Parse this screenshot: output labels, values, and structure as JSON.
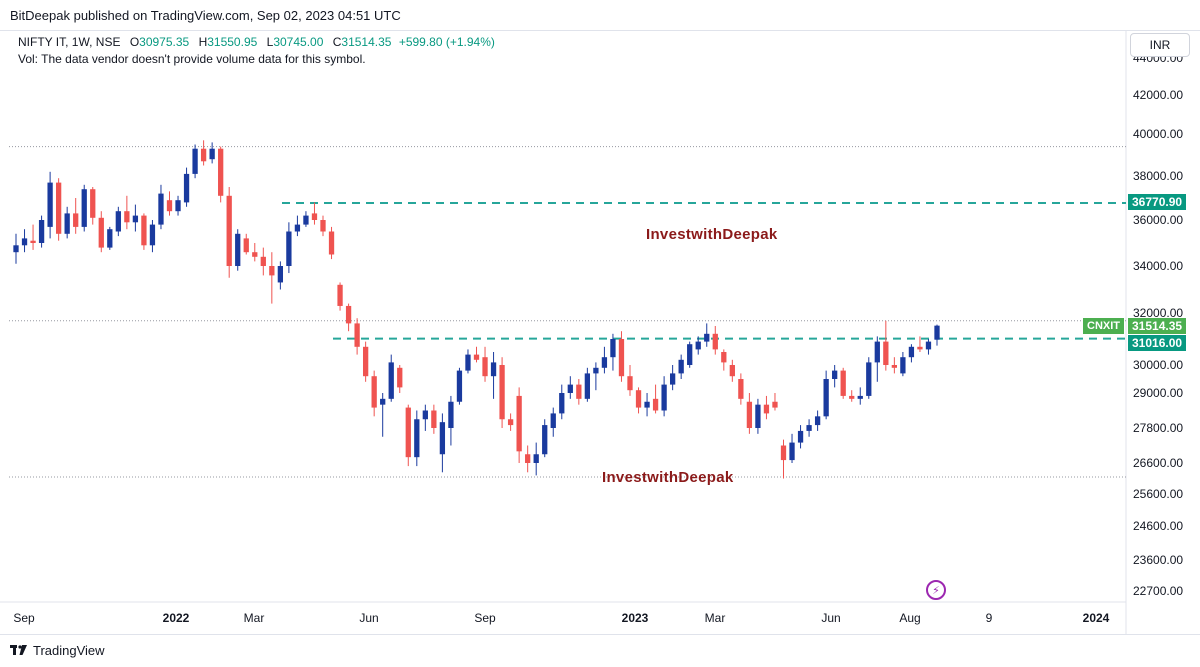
{
  "header": {
    "published": "BitDeepak published on TradingView.com, Sep 02, 2023 04:51 UTC"
  },
  "legend": {
    "symbol": "NIFTY IT, 1W, NSE",
    "open_label": "O",
    "open": "30975.35",
    "high_label": "H",
    "high": "31550.95",
    "low_label": "L",
    "low": "30745.00",
    "close_label": "C",
    "close": "31514.35",
    "change": "+599.80 (+1.94%)",
    "volume_note": "Vol: The data vendor doesn't provide volume data for this symbol."
  },
  "currency": "INR",
  "colors": {
    "up": "#1a3a9e",
    "down": "#ef5350",
    "level": "#26a69a",
    "tag_green": "#4caf50",
    "tag_teal": "#089981",
    "watermark": "#8b1a1a",
    "dotted": "#9598a1"
  },
  "price_tags": {
    "resistance": "36770.90",
    "last_symbol": "CNXIT",
    "last_price": "31514.35",
    "neckline": "31016.00"
  },
  "watermarks": [
    "InvestwithDeepak",
    "InvestwithDeepak"
  ],
  "footer": {
    "brand": "TradingView"
  },
  "chart_data": {
    "type": "candlestick",
    "interval": "1W",
    "y_axis_ticks": [
      "44000.00",
      "42000.00",
      "40000.00",
      "38000.00",
      "36000.00",
      "34000.00",
      "32000.00",
      "30000.00",
      "29000.00",
      "27800.00",
      "26600.00",
      "25600.00",
      "24600.00",
      "23600.00",
      "22700.00"
    ],
    "x_axis_ticks": [
      {
        "label": "Sep",
        "bold": false
      },
      {
        "label": "2022",
        "bold": true
      },
      {
        "label": "Mar",
        "bold": false
      },
      {
        "label": "Jun",
        "bold": false
      },
      {
        "label": "Sep",
        "bold": false
      },
      {
        "label": "2023",
        "bold": true
      },
      {
        "label": "Mar",
        "bold": false
      },
      {
        "label": "Jun",
        "bold": false
      },
      {
        "label": "Aug",
        "bold": false
      },
      {
        "label": "9",
        "bold": false
      },
      {
        "label": "2024",
        "bold": true
      }
    ],
    "horizontal_levels": [
      {
        "price": 36770.9,
        "style": "dashed"
      },
      {
        "price": 31016.0,
        "style": "dashed"
      },
      {
        "price": 39400,
        "style": "dotted"
      },
      {
        "price": 31700,
        "style": "dotted"
      },
      {
        "price": 26150,
        "style": "dotted"
      }
    ],
    "candles": [
      {
        "o": 34600,
        "h": 35400,
        "l": 34100,
        "c": 34900
      },
      {
        "o": 34900,
        "h": 35600,
        "l": 34600,
        "c": 35200
      },
      {
        "o": 35100,
        "h": 35800,
        "l": 34700,
        "c": 35000
      },
      {
        "o": 35000,
        "h": 36200,
        "l": 34800,
        "c": 36000
      },
      {
        "o": 35700,
        "h": 38200,
        "l": 35200,
        "c": 37700
      },
      {
        "o": 37700,
        "h": 37900,
        "l": 35100,
        "c": 35400
      },
      {
        "o": 35400,
        "h": 36600,
        "l": 35200,
        "c": 36300
      },
      {
        "o": 36300,
        "h": 37000,
        "l": 35400,
        "c": 35700
      },
      {
        "o": 35700,
        "h": 37600,
        "l": 35500,
        "c": 37400
      },
      {
        "o": 37400,
        "h": 37500,
        "l": 35800,
        "c": 36100
      },
      {
        "o": 36100,
        "h": 36400,
        "l": 34600,
        "c": 34800
      },
      {
        "o": 34800,
        "h": 35700,
        "l": 34700,
        "c": 35600
      },
      {
        "o": 35500,
        "h": 36600,
        "l": 35300,
        "c": 36400
      },
      {
        "o": 36400,
        "h": 37100,
        "l": 35600,
        "c": 35900
      },
      {
        "o": 35900,
        "h": 36700,
        "l": 35500,
        "c": 36200
      },
      {
        "o": 36200,
        "h": 36300,
        "l": 34700,
        "c": 34900
      },
      {
        "o": 34900,
        "h": 36000,
        "l": 34600,
        "c": 35800
      },
      {
        "o": 35800,
        "h": 37600,
        "l": 35600,
        "c": 37200
      },
      {
        "o": 36900,
        "h": 37300,
        "l": 36200,
        "c": 36400
      },
      {
        "o": 36400,
        "h": 37100,
        "l": 36200,
        "c": 36900
      },
      {
        "o": 36800,
        "h": 38400,
        "l": 36600,
        "c": 38100
      },
      {
        "o": 38100,
        "h": 39500,
        "l": 37900,
        "c": 39300
      },
      {
        "o": 39300,
        "h": 39700,
        "l": 38500,
        "c": 38700
      },
      {
        "o": 38800,
        "h": 39600,
        "l": 38600,
        "c": 39300
      },
      {
        "o": 39300,
        "h": 39400,
        "l": 36800,
        "c": 37100
      },
      {
        "o": 37100,
        "h": 37500,
        "l": 33500,
        "c": 34000
      },
      {
        "o": 34000,
        "h": 35600,
        "l": 33800,
        "c": 35400
      },
      {
        "o": 35200,
        "h": 35400,
        "l": 34500,
        "c": 34600
      },
      {
        "o": 34600,
        "h": 35000,
        "l": 34200,
        "c": 34400
      },
      {
        "o": 34400,
        "h": 34800,
        "l": 33600,
        "c": 34000
      },
      {
        "o": 34000,
        "h": 34600,
        "l": 32400,
        "c": 33600
      },
      {
        "o": 33300,
        "h": 34200,
        "l": 33000,
        "c": 34000
      },
      {
        "o": 34000,
        "h": 35900,
        "l": 33700,
        "c": 35500
      },
      {
        "o": 35500,
        "h": 36200,
        "l": 35300,
        "c": 35800
      },
      {
        "o": 35800,
        "h": 36400,
        "l": 35700,
        "c": 36200
      },
      {
        "o": 36300,
        "h": 36800,
        "l": 35800,
        "c": 36000
      },
      {
        "o": 36000,
        "h": 36200,
        "l": 35300,
        "c": 35500
      },
      {
        "o": 35500,
        "h": 35700,
        "l": 34300,
        "c": 34500
      },
      {
        "o": 33200,
        "h": 33300,
        "l": 32100,
        "c": 32300
      },
      {
        "o": 32300,
        "h": 32400,
        "l": 31300,
        "c": 31600
      },
      {
        "o": 31600,
        "h": 31800,
        "l": 30400,
        "c": 30700
      },
      {
        "o": 30700,
        "h": 30900,
        "l": 29400,
        "c": 29600
      },
      {
        "o": 29600,
        "h": 29800,
        "l": 28200,
        "c": 28500
      },
      {
        "o": 28600,
        "h": 29000,
        "l": 27500,
        "c": 28800
      },
      {
        "o": 28800,
        "h": 30400,
        "l": 28700,
        "c": 30100
      },
      {
        "o": 29900,
        "h": 30000,
        "l": 29000,
        "c": 29200
      },
      {
        "o": 28500,
        "h": 28600,
        "l": 26500,
        "c": 26800
      },
      {
        "o": 26800,
        "h": 28400,
        "l": 26500,
        "c": 28100
      },
      {
        "o": 28100,
        "h": 28600,
        "l": 27700,
        "c": 28400
      },
      {
        "o": 28400,
        "h": 28600,
        "l": 27600,
        "c": 27800
      },
      {
        "o": 26900,
        "h": 28300,
        "l": 26300,
        "c": 28000
      },
      {
        "o": 27800,
        "h": 28900,
        "l": 27200,
        "c": 28700
      },
      {
        "o": 28700,
        "h": 29900,
        "l": 28600,
        "c": 29800
      },
      {
        "o": 29800,
        "h": 30600,
        "l": 29700,
        "c": 30400
      },
      {
        "o": 30400,
        "h": 30700,
        "l": 30100,
        "c": 30200
      },
      {
        "o": 30300,
        "h": 30700,
        "l": 29400,
        "c": 29600
      },
      {
        "o": 29600,
        "h": 30500,
        "l": 28800,
        "c": 30100
      },
      {
        "o": 30000,
        "h": 30300,
        "l": 27800,
        "c": 28100
      },
      {
        "o": 28100,
        "h": 28300,
        "l": 27700,
        "c": 27900
      },
      {
        "o": 28900,
        "h": 29200,
        "l": 26600,
        "c": 27000
      },
      {
        "o": 26900,
        "h": 27200,
        "l": 26300,
        "c": 26600
      },
      {
        "o": 26600,
        "h": 27300,
        "l": 26200,
        "c": 26900
      },
      {
        "o": 26900,
        "h": 28100,
        "l": 26800,
        "c": 27900
      },
      {
        "o": 27800,
        "h": 28500,
        "l": 27500,
        "c": 28300
      },
      {
        "o": 28300,
        "h": 29300,
        "l": 28100,
        "c": 29000
      },
      {
        "o": 29000,
        "h": 29600,
        "l": 28800,
        "c": 29300
      },
      {
        "o": 29300,
        "h": 29500,
        "l": 28600,
        "c": 28800
      },
      {
        "o": 28800,
        "h": 29900,
        "l": 28700,
        "c": 29700
      },
      {
        "o": 29700,
        "h": 30100,
        "l": 29100,
        "c": 29900
      },
      {
        "o": 29900,
        "h": 30700,
        "l": 29700,
        "c": 30300
      },
      {
        "o": 30300,
        "h": 31200,
        "l": 29800,
        "c": 31000
      },
      {
        "o": 31000,
        "h": 31300,
        "l": 29400,
        "c": 29600
      },
      {
        "o": 29600,
        "h": 30000,
        "l": 28900,
        "c": 29100
      },
      {
        "o": 29100,
        "h": 29200,
        "l": 28300,
        "c": 28500
      },
      {
        "o": 28500,
        "h": 29000,
        "l": 28200,
        "c": 28700
      },
      {
        "o": 28800,
        "h": 29300,
        "l": 28300,
        "c": 28400
      },
      {
        "o": 28400,
        "h": 29600,
        "l": 28200,
        "c": 29300
      },
      {
        "o": 29300,
        "h": 30000,
        "l": 29100,
        "c": 29700
      },
      {
        "o": 29700,
        "h": 30400,
        "l": 29500,
        "c": 30200
      },
      {
        "o": 30000,
        "h": 30900,
        "l": 29900,
        "c": 30800
      },
      {
        "o": 30600,
        "h": 31100,
        "l": 30400,
        "c": 30900
      },
      {
        "o": 30900,
        "h": 31600,
        "l": 30700,
        "c": 31200
      },
      {
        "o": 31200,
        "h": 31500,
        "l": 30400,
        "c": 30600
      },
      {
        "o": 30500,
        "h": 30600,
        "l": 29800,
        "c": 30100
      },
      {
        "o": 30000,
        "h": 30200,
        "l": 29400,
        "c": 29600
      },
      {
        "o": 29500,
        "h": 29700,
        "l": 28600,
        "c": 28800
      },
      {
        "o": 28700,
        "h": 29000,
        "l": 27600,
        "c": 27800
      },
      {
        "o": 27800,
        "h": 28800,
        "l": 27600,
        "c": 28600
      },
      {
        "o": 28600,
        "h": 28900,
        "l": 28100,
        "c": 28300
      },
      {
        "o": 28700,
        "h": 29000,
        "l": 28400,
        "c": 28500
      },
      {
        "o": 27200,
        "h": 27400,
        "l": 26100,
        "c": 26700
      },
      {
        "o": 26700,
        "h": 27600,
        "l": 26600,
        "c": 27300
      },
      {
        "o": 27300,
        "h": 27900,
        "l": 27100,
        "c": 27700
      },
      {
        "o": 27700,
        "h": 28100,
        "l": 27500,
        "c": 27900
      },
      {
        "o": 27900,
        "h": 28400,
        "l": 27700,
        "c": 28200
      },
      {
        "o": 28200,
        "h": 29800,
        "l": 28100,
        "c": 29500
      },
      {
        "o": 29500,
        "h": 30000,
        "l": 29200,
        "c": 29800
      },
      {
        "o": 29800,
        "h": 29900,
        "l": 28800,
        "c": 28900
      },
      {
        "o": 28900,
        "h": 29100,
        "l": 28700,
        "c": 28800
      },
      {
        "o": 28800,
        "h": 29200,
        "l": 28600,
        "c": 28900
      },
      {
        "o": 28900,
        "h": 30300,
        "l": 28800,
        "c": 30100
      },
      {
        "o": 30100,
        "h": 31100,
        "l": 29400,
        "c": 30900
      },
      {
        "o": 30900,
        "h": 31700,
        "l": 29800,
        "c": 30000
      },
      {
        "o": 30000,
        "h": 30300,
        "l": 29700,
        "c": 29900
      },
      {
        "o": 29700,
        "h": 30500,
        "l": 29600,
        "c": 30300
      },
      {
        "o": 30300,
        "h": 30800,
        "l": 30100,
        "c": 30700
      },
      {
        "o": 30700,
        "h": 31100,
        "l": 30500,
        "c": 30600
      },
      {
        "o": 30600,
        "h": 31000,
        "l": 30400,
        "c": 30900
      },
      {
        "o": 30975,
        "h": 31551,
        "l": 30745,
        "c": 31514
      }
    ]
  }
}
